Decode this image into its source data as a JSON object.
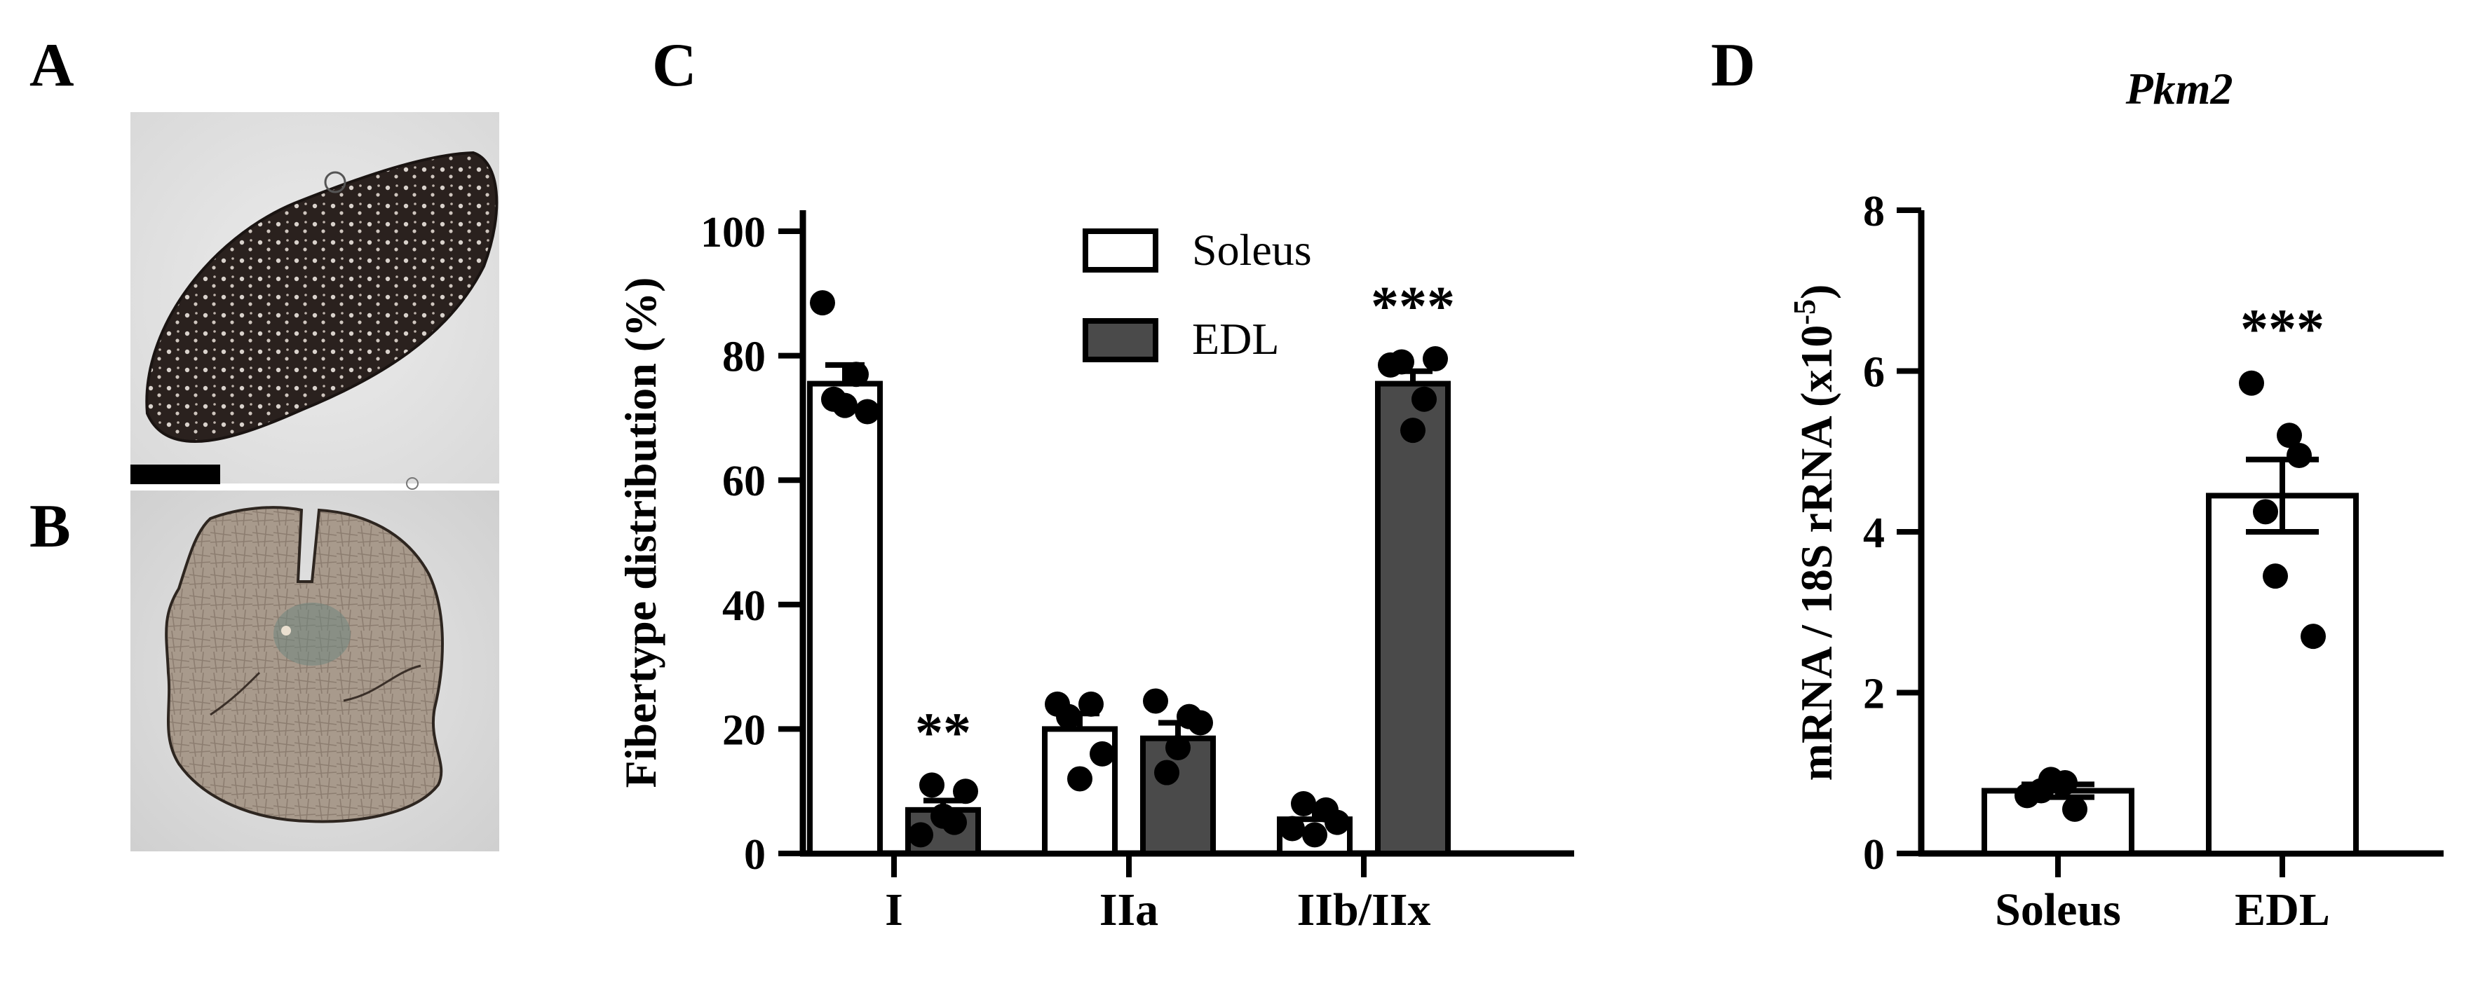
{
  "panel_labels": {
    "A": "A",
    "B": "B",
    "C": "C",
    "D": "D"
  },
  "colors": {
    "soleus": "#ffffff",
    "edl": "#4a4a4a",
    "stroke": "#000000"
  },
  "chart_data": [
    {
      "id": "C",
      "type": "bar",
      "title": "",
      "ylabel": "Fibertype distribution (%)",
      "xlabel": "",
      "ylim": [
        0,
        100
      ],
      "yticks": [
        "0",
        "20",
        "40",
        "60",
        "80",
        "100"
      ],
      "categories": [
        "I",
        "IIa",
        "IIb/IIx"
      ],
      "legend_position": "top-center",
      "series": [
        {
          "name": "Soleus",
          "values": [
            75.5,
            20,
            5.5
          ],
          "sem": [
            3.0,
            2.5,
            1.5
          ],
          "points": [
            [
              88.5,
              73,
              72,
              77,
              71
            ],
            [
              24,
              22,
              12,
              24,
              16
            ],
            [
              4,
              8,
              3,
              7,
              5
            ]
          ]
        },
        {
          "name": "EDL",
          "values": [
            7,
            18.5,
            75.5
          ],
          "sem": [
            1.5,
            2.5,
            2.0
          ],
          "points": [
            [
              3,
              11,
              6,
              5,
              10
            ],
            [
              24.5,
              13,
              17,
              22,
              21
            ],
            [
              78.5,
              79,
              68,
              73,
              79.5
            ]
          ]
        }
      ],
      "annotations": [
        {
          "category": "I",
          "series": "EDL",
          "text": "**"
        },
        {
          "category": "IIb/IIx",
          "series": "EDL",
          "text": "***"
        }
      ]
    },
    {
      "id": "D",
      "type": "bar",
      "title": "Pkm2",
      "ylabel": "mRNA / 18S rRNA (x10",
      "ylabel_sup": "-5",
      "ylabel_end": ")",
      "xlabel": "",
      "ylim": [
        0,
        8
      ],
      "yticks": [
        "0",
        "2",
        "4",
        "6",
        "8"
      ],
      "categories": [
        "Soleus",
        "EDL"
      ],
      "values": [
        0.78,
        4.45
      ],
      "sem": [
        0.08,
        0.45
      ],
      "points": [
        [
          0.72,
          0.88,
          0.55,
          0.78,
          0.92
        ],
        [
          5.85,
          5.2,
          4.95,
          4.25,
          3.45,
          2.7
        ]
      ],
      "annotations": [
        {
          "category": "EDL",
          "text": "***"
        }
      ]
    }
  ]
}
